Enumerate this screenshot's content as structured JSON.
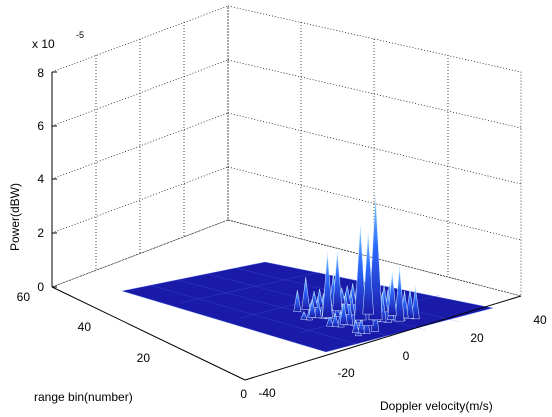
{
  "chart_data": {
    "type": "surface",
    "zlabel": "Power(dBW)",
    "xlabel": "Doppler velocity(m/s)",
    "ylabel": "range bin(number)",
    "z_exponent": "x 10",
    "z_exponent_power": "-5",
    "zlim": [
      0,
      8
    ],
    "xlim": [
      -40,
      40
    ],
    "ylim": [
      0,
      60
    ],
    "z_ticks": [
      "0",
      "2",
      "4",
      "6",
      "8"
    ],
    "x_ticks": [
      "-40",
      "-20",
      "0",
      "20",
      "40"
    ],
    "y_ticks": [
      "0",
      "20",
      "40",
      "60"
    ],
    "grid": true,
    "surface_color": "#1a1aa8",
    "peak_color": "#4fa0ff",
    "peaks": [
      {
        "doppler": -7,
        "range": 8,
        "power": 3.2
      },
      {
        "doppler": -4,
        "range": 12,
        "power": 3.5
      },
      {
        "doppler": 0,
        "range": 10,
        "power": 4.6
      },
      {
        "doppler": 3,
        "range": 14,
        "power": 3.0
      },
      {
        "doppler": -10,
        "range": 18,
        "power": 2.4
      },
      {
        "doppler": 5,
        "range": 6,
        "power": 2.0
      },
      {
        "doppler": -2,
        "range": 20,
        "power": 2.2
      },
      {
        "doppler": 8,
        "range": 10,
        "power": 1.6
      }
    ]
  }
}
